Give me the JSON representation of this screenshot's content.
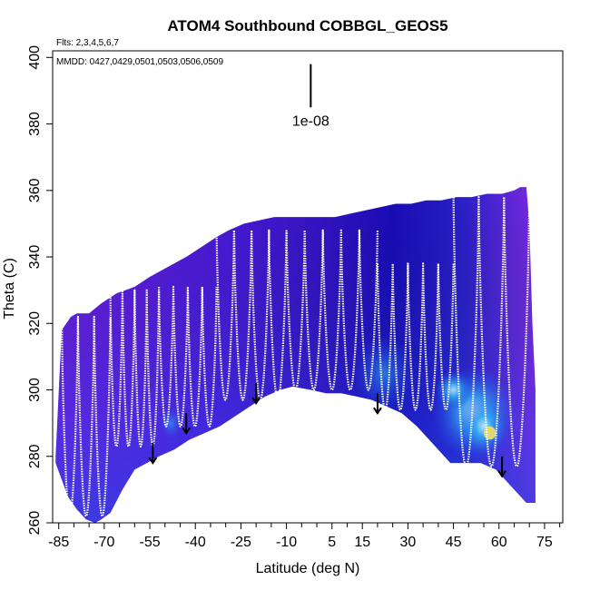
{
  "chart_data": {
    "type": "heatmap",
    "title": "ATOM4 Southbound COBBGL_GEOS5",
    "annotations": {
      "flights": "Flts: 2,3,4,5,6,7",
      "dates": "MMDD: 0427,0429,0501,0503,0506,0509",
      "scale_label": "1e-08"
    },
    "xlabel": "Latitude (deg N)",
    "ylabel": "Theta (C)",
    "xlim": [
      -87,
      81
    ],
    "ylim": [
      260,
      402
    ],
    "xticks": [
      -85,
      -70,
      -55,
      -40,
      -25,
      -10,
      5,
      15,
      30,
      45,
      60,
      75
    ],
    "xticks_minor": [
      -80,
      -75,
      -65,
      -60,
      -50,
      -45,
      -35,
      -30,
      -20,
      -15,
      -5,
      0,
      10,
      20,
      25,
      35,
      40,
      50,
      55,
      65,
      70,
      80
    ],
    "yticks": [
      260,
      280,
      300,
      320,
      340,
      360,
      380,
      400
    ],
    "scale_bar": {
      "x": -2,
      "y_bottom": 385,
      "y_top": 398
    },
    "field_top": [
      [
        -86,
        280
      ],
      [
        -84,
        318
      ],
      [
        -81,
        322
      ],
      [
        -79,
        323
      ],
      [
        -75,
        323
      ],
      [
        -71,
        326
      ],
      [
        -66,
        329
      ],
      [
        -60,
        331
      ],
      [
        -55,
        334
      ],
      [
        -49,
        337
      ],
      [
        -43,
        340
      ],
      [
        -38,
        343
      ],
      [
        -33,
        346
      ],
      [
        -29,
        348
      ],
      [
        -24,
        350
      ],
      [
        -19,
        351
      ],
      [
        -14,
        352
      ],
      [
        -9,
        352
      ],
      [
        -4,
        352
      ],
      [
        1,
        352
      ],
      [
        6,
        352
      ],
      [
        11,
        353
      ],
      [
        16,
        354
      ],
      [
        21,
        355
      ],
      [
        26,
        356
      ],
      [
        31,
        356
      ],
      [
        36,
        357
      ],
      [
        41,
        357
      ],
      [
        46,
        358
      ],
      [
        51,
        358
      ],
      [
        56,
        359
      ],
      [
        61,
        359
      ],
      [
        65,
        360
      ],
      [
        67,
        361
      ],
      [
        69,
        361
      ],
      [
        70,
        350
      ],
      [
        71,
        320
      ],
      [
        72,
        300
      ],
      [
        72,
        266
      ]
    ],
    "field_bottom": [
      [
        72,
        266
      ],
      [
        69,
        266
      ],
      [
        66,
        269
      ],
      [
        63,
        272
      ],
      [
        59,
        276
      ],
      [
        54,
        278
      ],
      [
        49,
        278
      ],
      [
        44,
        278
      ],
      [
        38,
        284
      ],
      [
        33,
        289
      ],
      [
        28,
        293
      ],
      [
        23,
        295
      ],
      [
        18,
        297
      ],
      [
        13,
        298
      ],
      [
        8,
        299
      ],
      [
        3,
        299
      ],
      [
        -2,
        300
      ],
      [
        -8,
        301
      ],
      [
        -12,
        300
      ],
      [
        -17,
        298
      ],
      [
        -22,
        295
      ],
      [
        -27,
        292
      ],
      [
        -32,
        289
      ],
      [
        -37,
        287
      ],
      [
        -42,
        285
      ],
      [
        -47,
        282
      ],
      [
        -52,
        280
      ],
      [
        -56,
        278
      ],
      [
        -60,
        276
      ],
      [
        -64,
        270
      ],
      [
        -68,
        263
      ],
      [
        -71,
        261
      ],
      [
        -73,
        260
      ],
      [
        -76,
        261
      ],
      [
        -79,
        264
      ],
      [
        -82,
        268
      ],
      [
        -86,
        278
      ]
    ],
    "dense_regions": [
      {
        "lat": -48,
        "theta": 290,
        "rx": 4,
        "ry": 5,
        "level": "low"
      },
      {
        "lat": 22,
        "theta": 305,
        "rx": 10,
        "ry": 12,
        "level": "low"
      },
      {
        "lat": 52,
        "theta": 293,
        "rx": 14,
        "ry": 14,
        "level": "mid"
      },
      {
        "lat": 55,
        "theta": 289,
        "rx": 8,
        "ry": 9,
        "level": "high"
      },
      {
        "lat": 57,
        "theta": 287,
        "rx": 2,
        "ry": 2,
        "level": "peak"
      },
      {
        "lat": 45,
        "theta": 300,
        "rx": 6,
        "ry": 6,
        "level": "mid"
      }
    ],
    "flight_tracks": [
      {
        "lat_start": -84,
        "lat_end": -68,
        "cycles": 3,
        "theta_low": 262,
        "theta_high": 322
      },
      {
        "lat_start": -68,
        "lat_end": -52,
        "cycles": 4,
        "theta_low": 283,
        "theta_high": 330
      },
      {
        "lat_start": -52,
        "lat_end": -33,
        "cycles": 4,
        "theta_low": 289,
        "theta_high": 331
      },
      {
        "lat_start": -33,
        "lat_end": -10,
        "cycles": 4,
        "theta_low": 297,
        "theta_high": 348
      },
      {
        "lat_start": -10,
        "lat_end": 20,
        "cycles": 5,
        "theta_low": 300,
        "theta_high": 348
      },
      {
        "lat_start": 20,
        "lat_end": 45,
        "cycles": 5,
        "theta_low": 294,
        "theta_high": 338
      },
      {
        "lat_start": 45,
        "lat_end": 70,
        "cycles": 3,
        "theta_low": 277,
        "theta_high": 358
      }
    ],
    "arrows": [
      {
        "lat": -54,
        "theta_start": 284,
        "theta_end": 278
      },
      {
        "lat": -43,
        "theta_start": 293,
        "theta_end": 287
      },
      {
        "lat": -20,
        "theta_start": 302,
        "theta_end": 296
      },
      {
        "lat": 20,
        "theta_start": 299,
        "theta_end": 293
      },
      {
        "lat": 61,
        "theta_start": 280,
        "theta_end": 274
      }
    ],
    "colors": {
      "background": "#ffffff",
      "field_purple": "#6a1ee0",
      "field_mid": "#3a16c8",
      "field_dark": "#1408b4",
      "field_blue": "#1f4fe6",
      "field_cyan": "#33a8f0",
      "field_light": "#cdeffc",
      "field_yellow": "#f2e060",
      "track": "#ffffff",
      "ink": "#000000"
    }
  }
}
